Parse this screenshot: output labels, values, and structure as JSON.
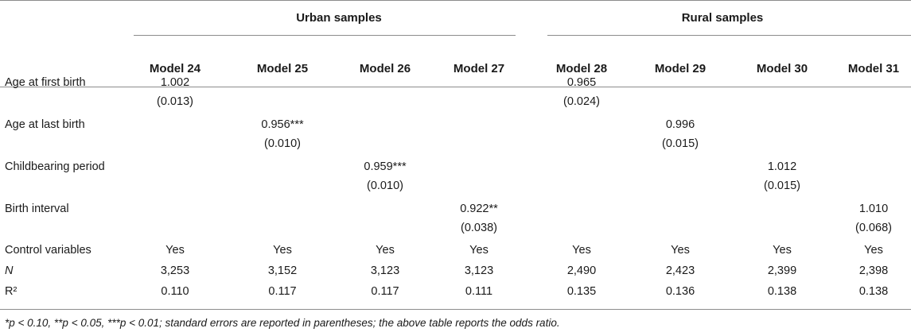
{
  "groups": {
    "urban": "Urban samples",
    "rural": "Rural samples"
  },
  "models": [
    "Model 24",
    "Model 25",
    "Model 26",
    "Model 27",
    "Model 28",
    "Model 29",
    "Model 30",
    "Model 31"
  ],
  "rows": [
    {
      "label": "Age at first birth",
      "coef": [
        "1.002",
        "",
        "",
        "",
        "0.965",
        "",
        "",
        ""
      ],
      "se": [
        "(0.013)",
        "",
        "",
        "",
        "(0.024)",
        "",
        "",
        ""
      ]
    },
    {
      "label": "Age at last birth",
      "coef": [
        "",
        "0.956***",
        "",
        "",
        "",
        "0.996",
        "",
        ""
      ],
      "se": [
        "",
        "(0.010)",
        "",
        "",
        "",
        "(0.015)",
        "",
        ""
      ]
    },
    {
      "label": "Childbearing period",
      "coef": [
        "",
        "",
        "0.959***",
        "",
        "",
        "",
        "1.012",
        ""
      ],
      "se": [
        "",
        "",
        "(0.010)",
        "",
        "",
        "",
        "(0.015)",
        ""
      ]
    },
    {
      "label": "Birth interval",
      "coef": [
        "",
        "",
        "",
        "0.922**",
        "",
        "",
        "",
        "1.010"
      ],
      "se": [
        "",
        "",
        "",
        "(0.038)",
        "",
        "",
        "",
        "(0.068)"
      ]
    }
  ],
  "stats": [
    {
      "label": "Control variables",
      "italic": false,
      "values": [
        "Yes",
        "Yes",
        "Yes",
        "Yes",
        "Yes",
        "Yes",
        "Yes",
        "Yes"
      ]
    },
    {
      "label": "N",
      "italic": true,
      "values": [
        "3,253",
        "3,152",
        "3,123",
        "3,123",
        "2,490",
        "2,423",
        "2,399",
        "2,398"
      ]
    },
    {
      "label": "R²",
      "italic": false,
      "values": [
        "0.110",
        "0.117",
        "0.117",
        "0.111",
        "0.135",
        "0.136",
        "0.138",
        "0.138"
      ]
    }
  ],
  "footnote": "*p < 0.10, **p < 0.05, ***p < 0.01; standard errors are reported in parentheses; the above table reports the odds ratio."
}
